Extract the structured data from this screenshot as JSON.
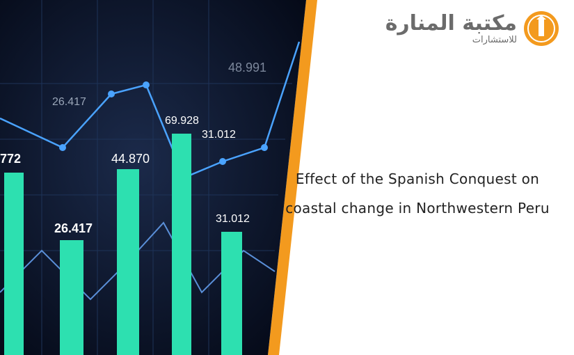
{
  "hero_image": {
    "labels": [
      "26.417",
      "48.991",
      "69.928",
      "31.012",
      "44.870",
      "772",
      "26.417",
      "31.012"
    ]
  },
  "logo": {
    "name": "مكتبة المنارة",
    "tagline": "للاستشارات"
  },
  "title": "Effect of the Spanish Conquest on coastal change in Northwestern Peru"
}
